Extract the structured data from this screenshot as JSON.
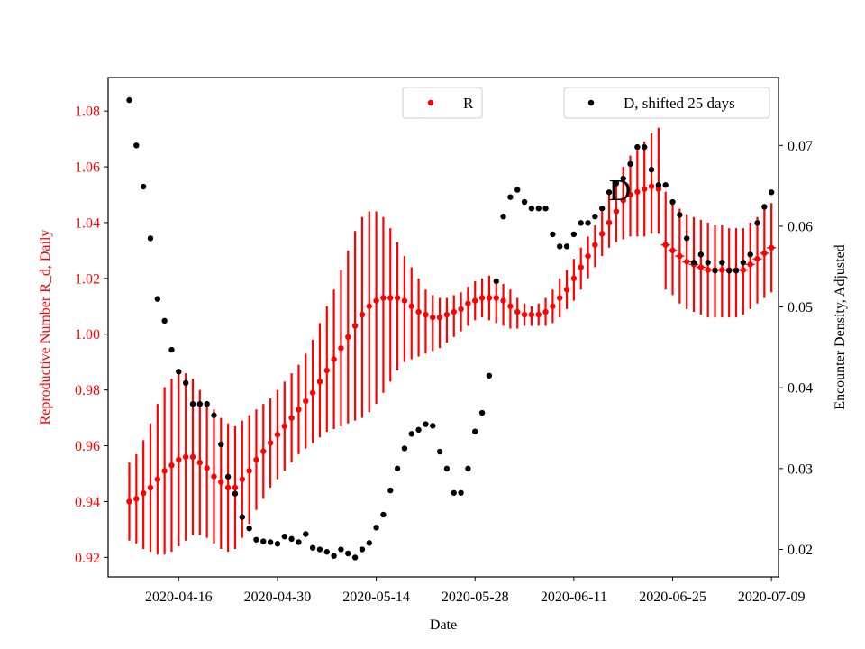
{
  "chart_data": {
    "type": "scatter",
    "xlabel": "Date",
    "ylabel_left": "Reproductive Number R_d, Daily",
    "ylabel_right": "Encounter Density, Adjusted",
    "x_range": [
      "2020-04-06",
      "2020-07-10"
    ],
    "ylim_left": [
      0.913,
      1.092
    ],
    "ylim_right": [
      0.0166,
      0.0784
    ],
    "x_ticks": [
      "2020-04-16",
      "2020-04-30",
      "2020-05-14",
      "2020-05-28",
      "2020-06-11",
      "2020-06-25",
      "2020-07-09"
    ],
    "y_ticks_left": [
      "0.92",
      "0.94",
      "0.96",
      "0.98",
      "1.00",
      "1.02",
      "1.04",
      "1.06",
      "1.08"
    ],
    "y_ticks_right": [
      "0.02",
      "0.03",
      "0.04",
      "0.05",
      "0.06",
      "0.07"
    ],
    "grid": false,
    "annotation": "D",
    "colors": {
      "R": "#ff0000",
      "D": "#000000",
      "left_axis": "#ff0000",
      "right_axis": "#000000"
    },
    "series": [
      {
        "name": "R",
        "axis": "left",
        "marker": "dot",
        "error_bars": true,
        "legend_location": "top-center",
        "start_date": "2020-04-09",
        "x": [
          "2020-04-09",
          "2020-04-10",
          "2020-04-11",
          "2020-04-12",
          "2020-04-13",
          "2020-04-14",
          "2020-04-15",
          "2020-04-16",
          "2020-04-17",
          "2020-04-18",
          "2020-04-19",
          "2020-04-20",
          "2020-04-21",
          "2020-04-22",
          "2020-04-23",
          "2020-04-24",
          "2020-04-25",
          "2020-04-26",
          "2020-04-27",
          "2020-04-28",
          "2020-04-29",
          "2020-04-30",
          "2020-05-01",
          "2020-05-02",
          "2020-05-03",
          "2020-05-04",
          "2020-05-05",
          "2020-05-06",
          "2020-05-07",
          "2020-05-08",
          "2020-05-09",
          "2020-05-10",
          "2020-05-11",
          "2020-05-12",
          "2020-05-13",
          "2020-05-14",
          "2020-05-15",
          "2020-05-16",
          "2020-05-17",
          "2020-05-18",
          "2020-05-19",
          "2020-05-20",
          "2020-05-21",
          "2020-05-22",
          "2020-05-23",
          "2020-05-24",
          "2020-05-25",
          "2020-05-26",
          "2020-05-27",
          "2020-05-28",
          "2020-05-29",
          "2020-05-30",
          "2020-05-31",
          "2020-06-01",
          "2020-06-02",
          "2020-06-03",
          "2020-06-04",
          "2020-06-05",
          "2020-06-06",
          "2020-06-07",
          "2020-06-08",
          "2020-06-09",
          "2020-06-10",
          "2020-06-11",
          "2020-06-12",
          "2020-06-13",
          "2020-06-14",
          "2020-06-15",
          "2020-06-16",
          "2020-06-17",
          "2020-06-18",
          "2020-06-19",
          "2020-06-20",
          "2020-06-21",
          "2020-06-22",
          "2020-06-23",
          "2020-06-24",
          "2020-06-25",
          "2020-06-26",
          "2020-06-27",
          "2020-06-28",
          "2020-06-29",
          "2020-06-30",
          "2020-07-01",
          "2020-07-02",
          "2020-07-03",
          "2020-07-04",
          "2020-07-05",
          "2020-07-06",
          "2020-07-07",
          "2020-07-08",
          "2020-07-09"
        ],
        "values": [
          0.94,
          0.941,
          0.943,
          0.945,
          0.948,
          0.951,
          0.953,
          0.955,
          0.956,
          0.956,
          0.954,
          0.952,
          0.949,
          0.947,
          0.945,
          0.945,
          0.948,
          0.951,
          0.955,
          0.958,
          0.961,
          0.964,
          0.967,
          0.97,
          0.973,
          0.976,
          0.979,
          0.983,
          0.987,
          0.991,
          0.995,
          0.999,
          1.003,
          1.007,
          1.01,
          1.012,
          1.013,
          1.013,
          1.013,
          1.012,
          1.01,
          1.008,
          1.007,
          1.006,
          1.006,
          1.007,
          1.008,
          1.009,
          1.011,
          1.012,
          1.013,
          1.013,
          1.013,
          1.012,
          1.01,
          1.008,
          1.007,
          1.007,
          1.007,
          1.008,
          1.01,
          1.013,
          1.016,
          1.02,
          1.024,
          1.028,
          1.032,
          1.036,
          1.04,
          1.044,
          1.048,
          1.05,
          1.051,
          1.052,
          1.053,
          1.052,
          1.032,
          1.03,
          1.028,
          1.026,
          1.025,
          1.024,
          1.023,
          1.023,
          1.023,
          1.023,
          1.023,
          1.023,
          1.025,
          1.027,
          1.029,
          1.031
        ],
        "lower": [
          0.926,
          0.925,
          0.923,
          0.922,
          0.921,
          0.921,
          0.922,
          0.924,
          0.926,
          0.928,
          0.928,
          0.927,
          0.925,
          0.923,
          0.922,
          0.923,
          0.927,
          0.932,
          0.937,
          0.941,
          0.945,
          0.948,
          0.951,
          0.954,
          0.957,
          0.959,
          0.961,
          0.963,
          0.965,
          0.966,
          0.967,
          0.968,
          0.969,
          0.97,
          0.972,
          0.975,
          0.979,
          0.983,
          0.987,
          0.99,
          0.991,
          0.992,
          0.993,
          0.994,
          0.995,
          0.997,
          0.999,
          1.001,
          1.003,
          1.005,
          1.006,
          1.005,
          1.004,
          1.003,
          1.002,
          1.002,
          1.003,
          1.003,
          1.003,
          1.003,
          1.004,
          1.006,
          1.009,
          1.012,
          1.016,
          1.02,
          1.024,
          1.028,
          1.031,
          1.033,
          1.034,
          1.035,
          1.035,
          1.035,
          1.036,
          1.036,
          1.016,
          1.014,
          1.011,
          1.009,
          1.008,
          1.007,
          1.006,
          1.006,
          1.006,
          1.006,
          1.006,
          1.007,
          1.009,
          1.011,
          1.013,
          1.015
        ],
        "upper": [
          0.954,
          0.957,
          0.962,
          0.968,
          0.975,
          0.981,
          0.984,
          0.986,
          0.986,
          0.984,
          0.98,
          0.976,
          0.973,
          0.97,
          0.968,
          0.967,
          0.969,
          0.971,
          0.973,
          0.975,
          0.977,
          0.98,
          0.983,
          0.986,
          0.989,
          0.993,
          0.998,
          1.004,
          1.01,
          1.016,
          1.023,
          1.03,
          1.037,
          1.042,
          1.044,
          1.044,
          1.042,
          1.038,
          1.033,
          1.028,
          1.024,
          1.02,
          1.016,
          1.014,
          1.013,
          1.013,
          1.014,
          1.015,
          1.017,
          1.019,
          1.02,
          1.021,
          1.02,
          1.018,
          1.016,
          1.013,
          1.011,
          1.01,
          1.011,
          1.013,
          1.016,
          1.02,
          1.023,
          1.027,
          1.031,
          1.035,
          1.039,
          1.044,
          1.05,
          1.055,
          1.06,
          1.064,
          1.066,
          1.069,
          1.072,
          1.074,
          1.051,
          1.048,
          1.045,
          1.043,
          1.042,
          1.041,
          1.04,
          1.039,
          1.039,
          1.038,
          1.038,
          1.038,
          1.04,
          1.042,
          1.045,
          1.047
        ]
      },
      {
        "name": "D, shifted 25 days",
        "axis": "right",
        "marker": "dot",
        "legend_location": "top-right",
        "x": [
          "2020-04-09",
          "2020-04-10",
          "2020-04-11",
          "2020-04-12",
          "2020-04-13",
          "2020-04-14",
          "2020-04-15",
          "2020-04-16",
          "2020-04-17",
          "2020-04-18",
          "2020-04-19",
          "2020-04-20",
          "2020-04-21",
          "2020-04-22",
          "2020-04-23",
          "2020-04-24",
          "2020-04-25",
          "2020-04-26",
          "2020-04-27",
          "2020-04-28",
          "2020-04-29",
          "2020-04-30",
          "2020-05-01",
          "2020-05-02",
          "2020-05-03",
          "2020-05-04",
          "2020-05-05",
          "2020-05-06",
          "2020-05-07",
          "2020-05-08",
          "2020-05-09",
          "2020-05-10",
          "2020-05-11",
          "2020-05-12",
          "2020-05-13",
          "2020-05-14",
          "2020-05-15",
          "2020-05-16",
          "2020-05-17",
          "2020-05-18",
          "2020-05-19",
          "2020-05-20",
          "2020-05-21",
          "2020-05-22",
          "2020-05-23",
          "2020-05-24",
          "2020-05-25",
          "2020-05-26",
          "2020-05-27",
          "2020-05-28",
          "2020-05-29",
          "2020-05-30",
          "2020-05-31",
          "2020-06-01",
          "2020-06-02",
          "2020-06-03",
          "2020-06-04",
          "2020-06-05",
          "2020-06-06",
          "2020-06-07",
          "2020-06-08",
          "2020-06-09",
          "2020-06-10",
          "2020-06-11",
          "2020-06-12",
          "2020-06-13",
          "2020-06-14",
          "2020-06-15",
          "2020-06-16",
          "2020-06-17",
          "2020-06-18",
          "2020-06-19",
          "2020-06-20",
          "2020-06-21",
          "2020-06-22",
          "2020-06-23",
          "2020-06-24",
          "2020-06-25",
          "2020-06-26",
          "2020-06-27",
          "2020-06-28",
          "2020-06-29",
          "2020-06-30",
          "2020-07-01",
          "2020-07-02",
          "2020-07-03",
          "2020-07-04",
          "2020-07-05",
          "2020-07-06",
          "2020-07-07",
          "2020-07-08",
          "2020-07-09"
        ],
        "values": [
          0.0756,
          0.07,
          0.0649,
          0.0585,
          0.051,
          0.0483,
          0.0447,
          0.042,
          0.0406,
          0.038,
          0.038,
          0.038,
          0.0366,
          0.033,
          0.029,
          0.0269,
          0.024,
          0.0226,
          0.0212,
          0.021,
          0.0209,
          0.0207,
          0.0216,
          0.0213,
          0.0209,
          0.0219,
          0.0202,
          0.02,
          0.0197,
          0.0192,
          0.02,
          0.0195,
          0.019,
          0.02,
          0.0208,
          0.0227,
          0.0243,
          0.0273,
          0.03,
          0.0325,
          0.0343,
          0.0348,
          0.0355,
          0.0353,
          0.0321,
          0.03,
          0.027,
          0.027,
          0.03,
          0.0346,
          0.0369,
          0.0415,
          0.0532,
          0.0612,
          0.0636,
          0.0645,
          0.063,
          0.0622,
          0.0622,
          0.0622,
          0.059,
          0.0575,
          0.0575,
          0.059,
          0.0604,
          0.0604,
          0.0612,
          0.0622,
          0.0642,
          0.0653,
          0.0659,
          0.0677,
          0.0698,
          0.0698,
          0.067,
          0.0651,
          0.0651,
          0.063,
          0.0614,
          0.0585,
          0.0555,
          0.0565,
          0.0555,
          0.0545,
          0.0555,
          0.0545,
          0.0545,
          0.0555,
          0.0565,
          0.0604,
          0.0624,
          0.0642
        ]
      }
    ]
  }
}
